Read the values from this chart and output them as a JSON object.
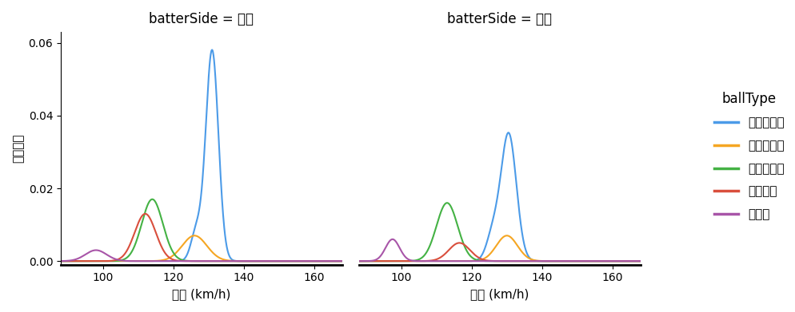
{
  "title_left": "batterSide = 左打",
  "title_right": "batterSide = 右打",
  "xlabel": "球速 (km/h)",
  "ylabel": "確率密度",
  "legend_title": "ballType",
  "xlim": [
    88,
    168
  ],
  "ylim": [
    -0.001,
    0.063
  ],
  "xticks": [
    100,
    120,
    140,
    160
  ],
  "yticks": [
    0.0,
    0.02,
    0.04,
    0.06
  ],
  "ball_types": [
    "ストレート",
    "ツーシーム",
    "スライダー",
    "シンカー",
    "カーブ"
  ],
  "colors": [
    "#4C9BE8",
    "#F5A623",
    "#44B244",
    "#D94F3D",
    "#A855A8"
  ],
  "left_params": {
    "ストレート": {
      "mean": 131.0,
      "std": 2.5,
      "peak": 0.058
    },
    "ツーシーム": {
      "mean": 126.0,
      "std": 3.5,
      "peak": 0.007
    },
    "スライダー": {
      "mean": 114.0,
      "std": 3.0,
      "peak": 0.017
    },
    "シンカー": {
      "mean": 112.0,
      "std": 3.0,
      "peak": 0.013
    },
    "カーブ": {
      "mean": 98.0,
      "std": 3.0,
      "peak": 0.003
    }
  },
  "right_params": {
    "ストレート": {
      "mean": 130.0,
      "std": 3.0,
      "peak": 0.035
    },
    "ツーシーム": {
      "mean": 130.0,
      "std": 3.0,
      "peak": 0.007
    },
    "スライダー": {
      "mean": 113.0,
      "std": 3.0,
      "peak": 0.016
    },
    "シンカー": {
      "mean": 116.5,
      "std": 3.0,
      "peak": 0.005
    },
    "カーブ": {
      "mean": 97.5,
      "std": 2.0,
      "peak": 0.006
    }
  }
}
